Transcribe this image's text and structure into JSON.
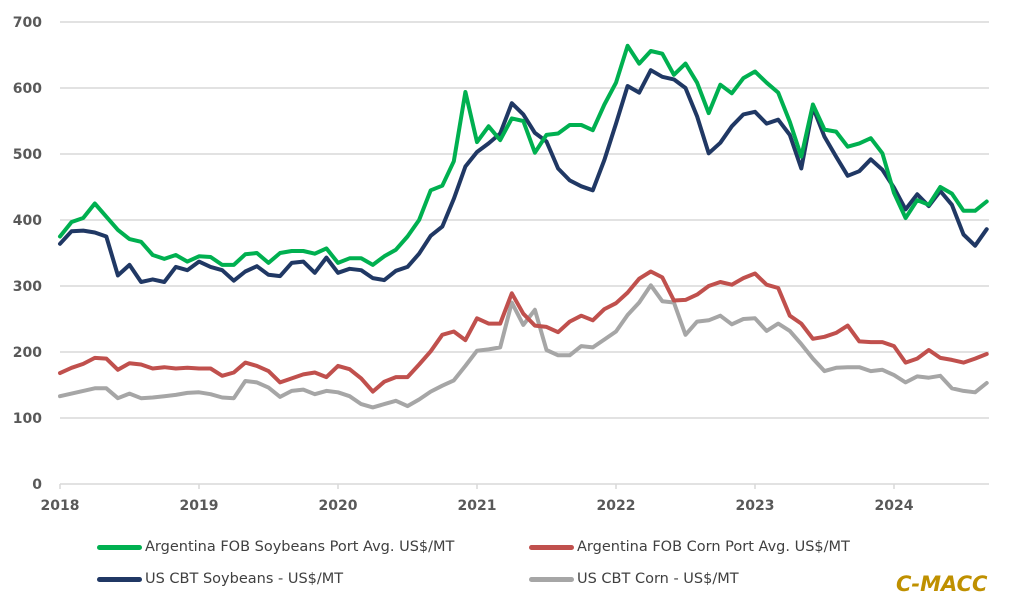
{
  "chart_data": {
    "type": "line",
    "title": "",
    "xlabel": "",
    "ylabel": "",
    "ylim": [
      0,
      700
    ],
    "yticks": [
      0,
      100,
      200,
      300,
      400,
      500,
      600,
      700
    ],
    "xticks": [
      "2018",
      "2019",
      "2020",
      "2021",
      "2022",
      "2023",
      "2024"
    ],
    "x_start": "2018-01",
    "x_end": "2024-09",
    "x_frequency": "monthly",
    "grid": "horizontal",
    "legend_position": "bottom",
    "series": [
      {
        "name": "Argentina FOB Soybeans Port Avg. US$/MT",
        "color": "#00B050",
        "values": [
          375,
          397,
          403,
          425,
          405,
          385,
          371,
          367,
          347,
          341,
          347,
          337,
          345,
          344,
          332,
          332,
          348,
          350,
          335,
          350,
          353,
          353,
          349,
          357,
          335,
          342,
          342,
          332,
          345,
          355,
          375,
          400,
          445,
          452,
          489,
          594,
          518,
          542,
          521,
          554,
          550,
          502,
          529,
          531,
          544,
          544,
          536,
          575,
          608,
          664,
          637,
          656,
          652,
          620,
          637,
          608,
          562,
          605,
          592,
          615,
          625,
          608,
          593,
          549,
          496,
          575,
          537,
          534,
          511,
          516,
          524,
          501,
          441,
          403,
          430,
          423,
          450,
          440,
          414,
          414,
          428
        ]
      },
      {
        "name": "Argentina FOB Corn Port Avg. US$/MT",
        "color": "#C0504D",
        "values": [
          168,
          176,
          182,
          191,
          190,
          173,
          183,
          181,
          175,
          177,
          175,
          176,
          175,
          175,
          164,
          169,
          184,
          179,
          171,
          154,
          160,
          166,
          169,
          162,
          179,
          174,
          160,
          140,
          155,
          162,
          162,
          181,
          201,
          226,
          231,
          218,
          251,
          243,
          243,
          289,
          258,
          240,
          238,
          230,
          246,
          255,
          248,
          265,
          274,
          290,
          311,
          322,
          313,
          278,
          279,
          287,
          300,
          306,
          302,
          312,
          319,
          302,
          297,
          255,
          243,
          220,
          223,
          229,
          240,
          216,
          215,
          215,
          209,
          184,
          190,
          203,
          191,
          188,
          184,
          190,
          197
        ]
      },
      {
        "name": "US CBT Soybeans - US$/MT",
        "color": "#203864",
        "values": [
          364,
          383,
          384,
          381,
          375,
          316,
          332,
          306,
          310,
          306,
          329,
          324,
          337,
          329,
          324,
          308,
          322,
          330,
          317,
          315,
          335,
          337,
          320,
          343,
          320,
          326,
          324,
          312,
          309,
          323,
          329,
          349,
          376,
          390,
          432,
          481,
          503,
          516,
          531,
          577,
          560,
          532,
          519,
          478,
          460,
          451,
          445,
          491,
          546,
          603,
          593,
          627,
          617,
          613,
          600,
          557,
          501,
          517,
          542,
          560,
          564,
          546,
          552,
          529,
          478,
          571,
          526,
          496,
          467,
          474,
          492,
          476,
          449,
          416,
          439,
          421,
          444,
          423,
          378,
          361,
          386
        ]
      },
      {
        "name": "US CBT Corn - US$/MT",
        "color": "#A6A6A6",
        "values": [
          133,
          137,
          141,
          145,
          145,
          130,
          137,
          130,
          131,
          133,
          135,
          138,
          139,
          136,
          131,
          130,
          156,
          154,
          146,
          132,
          141,
          143,
          136,
          141,
          139,
          133,
          121,
          116,
          121,
          126,
          118,
          128,
          140,
          149,
          157,
          179,
          202,
          204,
          207,
          275,
          241,
          264,
          203,
          195,
          195,
          209,
          207,
          219,
          231,
          256,
          275,
          301,
          277,
          275,
          226,
          246,
          248,
          255,
          242,
          250,
          251,
          232,
          243,
          232,
          212,
          190,
          171,
          176,
          177,
          177,
          171,
          173,
          165,
          154,
          163,
          161,
          164,
          145,
          141,
          139,
          153
        ]
      }
    ]
  },
  "legend": {
    "items": [
      {
        "label": "Argentina FOB Soybeans Port Avg. US$/MT",
        "color": "#00B050"
      },
      {
        "label": "Argentina FOB Corn Port Avg. US$/MT",
        "color": "#C0504D"
      },
      {
        "label": "US CBT Soybeans - US$/MT",
        "color": "#203864"
      },
      {
        "label": "US CBT Corn - US$/MT",
        "color": "#A6A6A6"
      }
    ]
  },
  "watermark": {
    "text": "C-MACC",
    "color": "#BF9000"
  }
}
